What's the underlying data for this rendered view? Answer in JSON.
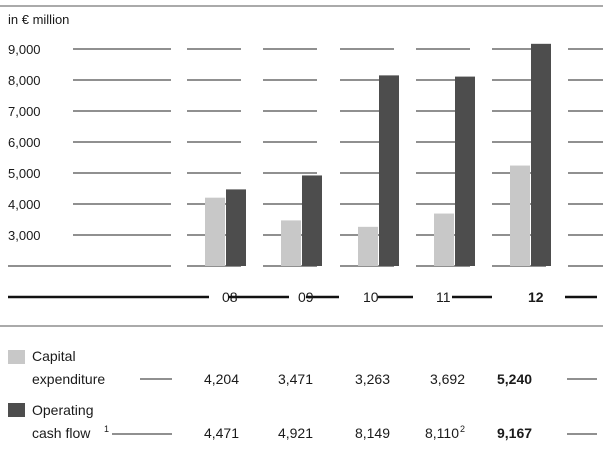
{
  "chart_data": {
    "type": "bar",
    "unit_label": "in € million",
    "categories": [
      "08",
      "09",
      "10",
      "11",
      "12"
    ],
    "highlight_category": "12",
    "y_ticks": [
      "9,000",
      "8,000",
      "7,000",
      "6,000",
      "5,000",
      "4,000",
      "3,000"
    ],
    "ylim": [
      2000,
      9500
    ],
    "colors": {
      "capex": "#c8c8c8",
      "ocf": "#4d4d4d"
    },
    "series": [
      {
        "key": "capex",
        "label_lines": [
          "Capital",
          "expenditure"
        ],
        "values": [
          4204,
          3471,
          3263,
          3692,
          5240
        ],
        "value_labels": [
          "4,204",
          "3,471",
          "3,263",
          "3,692",
          "5,240"
        ],
        "value_superscripts": [
          "",
          "",
          "",
          "",
          ""
        ]
      },
      {
        "key": "ocf",
        "label_lines": [
          "Operating",
          "cash flow"
        ],
        "label_superscript": "1",
        "values": [
          4471,
          4921,
          8149,
          8110,
          9167
        ],
        "value_labels": [
          "4,471",
          "4,921",
          "8,149",
          "8,110",
          "9,167"
        ],
        "value_superscripts": [
          "",
          "",
          "",
          "2",
          ""
        ]
      }
    ]
  }
}
